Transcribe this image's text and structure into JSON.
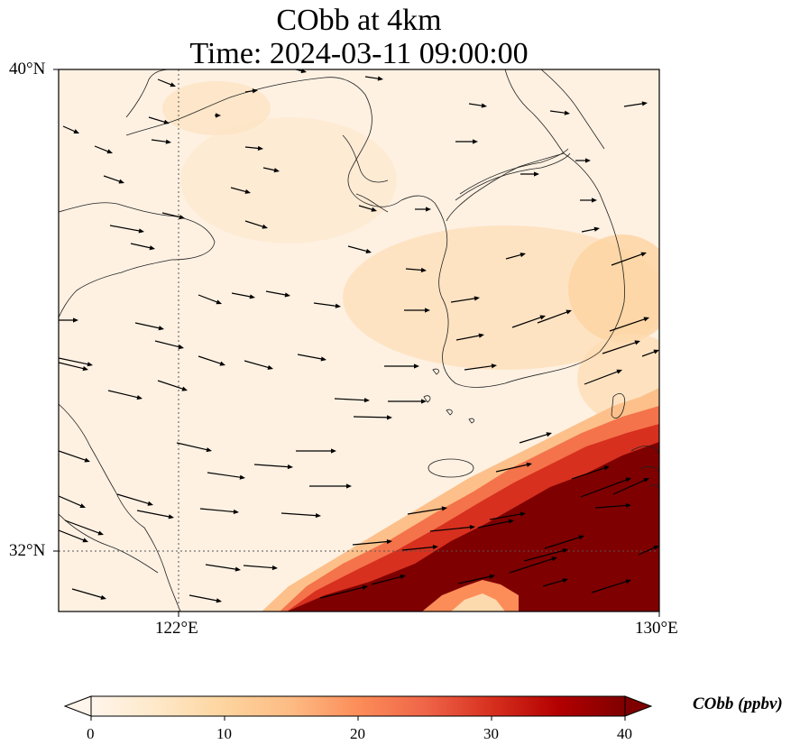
{
  "title": {
    "line1": "CObb at 4km",
    "line2": "Time: 2024-03-11 09:00:00"
  },
  "map": {
    "lat_labels": [
      "40°N",
      "32°N"
    ],
    "lon_labels": [
      "122°E",
      "130°E"
    ],
    "extent": {
      "lon": [
        120,
        130
      ],
      "lat": [
        31,
        40
      ]
    },
    "gridlines": {
      "lon": 122,
      "lat": 32,
      "style": "dotted"
    },
    "colormap": [
      "#fff5eb",
      "#fee8c8",
      "#fdd49e",
      "#fdbb84",
      "#fc8d59",
      "#ef6548",
      "#d7301f",
      "#b30000",
      "#7f0000"
    ]
  },
  "colorbar": {
    "label": "CObb (ppbv)",
    "ticks": [
      "0",
      "10",
      "20",
      "30",
      "40"
    ],
    "range": [
      0,
      40
    ],
    "extend": "both"
  }
}
